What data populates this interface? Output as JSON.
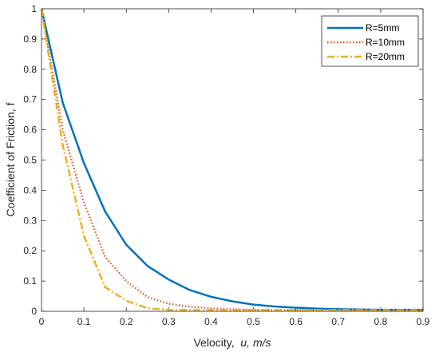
{
  "chart_data": {
    "type": "line",
    "xlabel": {
      "prefix": "Velocity,  ",
      "italic": "u, m/s"
    },
    "ylabel": "Coefficient of Friction, f",
    "xlim": [
      0,
      0.9
    ],
    "ylim": [
      0,
      1
    ],
    "xticks": [
      "0",
      "0.1",
      "0.2",
      "0.3",
      "0.4",
      "0.5",
      "0.6",
      "0.7",
      "0.8",
      "0.9"
    ],
    "yticks": [
      "0",
      "0.1",
      "0.2",
      "0.3",
      "0.4",
      "0.5",
      "0.6",
      "0.7",
      "0.8",
      "0.9",
      "1"
    ],
    "grid": false,
    "legend_position": "top-right",
    "x": [
      0,
      0.05,
      0.1,
      0.15,
      0.2,
      0.25,
      0.3,
      0.35,
      0.4,
      0.45,
      0.5,
      0.55,
      0.6,
      0.65,
      0.7,
      0.75,
      0.8,
      0.85,
      0.9
    ],
    "series": [
      {
        "name": "R=5mm",
        "color": "#0072bd",
        "style": "solid",
        "values": [
          1.0,
          0.69,
          0.49,
          0.33,
          0.22,
          0.15,
          0.105,
          0.07,
          0.048,
          0.033,
          0.022,
          0.016,
          0.012,
          0.009,
          0.007,
          0.006,
          0.005,
          0.005,
          0.005
        ]
      },
      {
        "name": "R=10mm",
        "color": "#d95319",
        "style": "dotted",
        "values": [
          1.0,
          0.6,
          0.36,
          0.18,
          0.1,
          0.047,
          0.025,
          0.015,
          0.01,
          0.007,
          0.005,
          0.004,
          0.004,
          0.004,
          0.004,
          0.004,
          0.004,
          0.004,
          0.004
        ]
      },
      {
        "name": "R=20mm",
        "color": "#edb120",
        "style": "dashdot",
        "values": [
          1.0,
          0.55,
          0.25,
          0.08,
          0.035,
          0.01,
          0.005,
          0.004,
          0.004,
          0.004,
          0.004,
          0.004,
          0.004,
          0.004,
          0.004,
          0.004,
          0.004,
          0.004,
          0.004
        ]
      }
    ]
  }
}
